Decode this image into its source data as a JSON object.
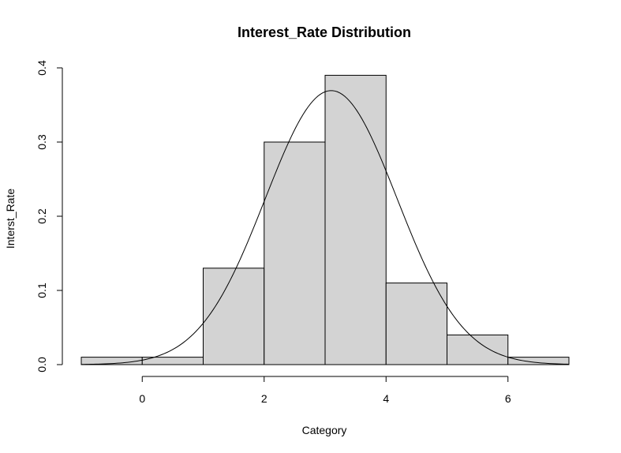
{
  "chart_data": {
    "type": "bar",
    "title": "Interest_Rate Distribution",
    "xlabel": "Category",
    "ylabel": "Interst_Rate",
    "bins": [
      {
        "x0": -1,
        "x1": 0,
        "density": 0.01
      },
      {
        "x0": 0,
        "x1": 1,
        "density": 0.01
      },
      {
        "x0": 1,
        "x1": 2,
        "density": 0.13
      },
      {
        "x0": 2,
        "x1": 3,
        "density": 0.3
      },
      {
        "x0": 3,
        "x1": 4,
        "density": 0.39
      },
      {
        "x0": 4,
        "x1": 5,
        "density": 0.11
      },
      {
        "x0": 5,
        "x1": 6,
        "density": 0.04
      },
      {
        "x0": 6,
        "x1": 7,
        "density": 0.01
      }
    ],
    "xlim": [
      -1,
      7
    ],
    "ylim": [
      0,
      0.4
    ],
    "x_ticks": [
      0,
      2,
      4,
      6
    ],
    "y_ticks": [
      "0.0",
      "0.1",
      "0.2",
      "0.3",
      "0.4"
    ],
    "density_curve": {
      "mean": 3.1,
      "sd": 1.08
    },
    "bar_fill": "#d3d3d3",
    "grid": false,
    "legend": "none"
  }
}
